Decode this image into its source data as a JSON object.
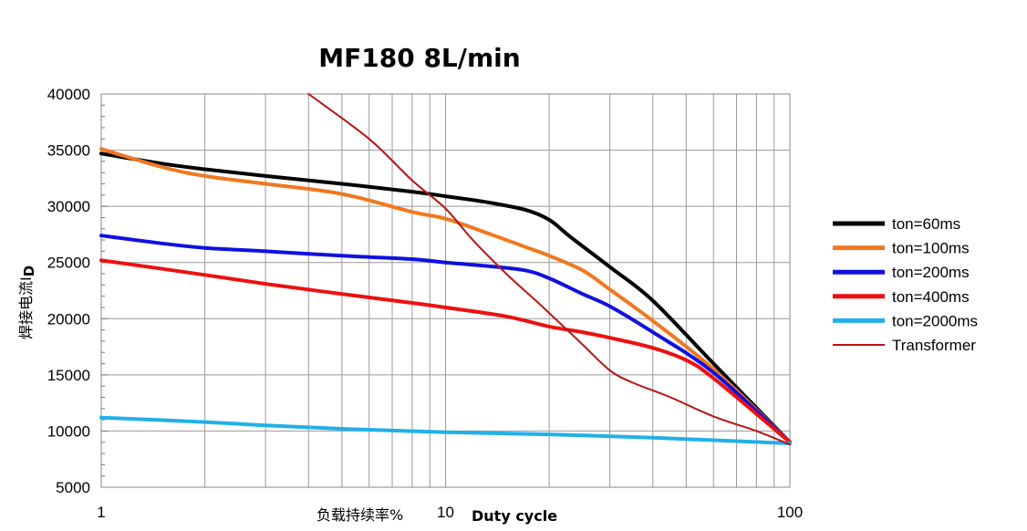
{
  "chart_data": {
    "type": "line",
    "title": "MF180 8L/min",
    "xscale": "log",
    "xlim": [
      1,
      100
    ],
    "ylim": [
      5000,
      40000
    ],
    "xticks": [
      "1",
      "10",
      "100"
    ],
    "yticks": [
      "5000",
      "10000",
      "15000",
      "20000",
      "25000",
      "30000",
      "35000",
      "40000"
    ],
    "xlabel_cn": "负载持续率%",
    "xlabel_en": "Duty cycle",
    "ylabel": "焊接电流I",
    "ylabel_sub": "D",
    "grid": true,
    "legend_position": "right",
    "series": [
      {
        "name": "ton=60ms",
        "color": "#000000",
        "points": [
          [
            1,
            34700
          ],
          [
            1.5,
            33800
          ],
          [
            2,
            33300
          ],
          [
            3,
            32700
          ],
          [
            5,
            32000
          ],
          [
            8,
            31300
          ],
          [
            10,
            30900
          ],
          [
            13,
            30400
          ],
          [
            17,
            29700
          ],
          [
            20,
            28800
          ],
          [
            23,
            27300
          ],
          [
            30,
            24600
          ],
          [
            40,
            21600
          ],
          [
            60,
            16000
          ],
          [
            100,
            9000
          ]
        ]
      },
      {
        "name": "ton=100ms",
        "color": "#f07820",
        "points": [
          [
            1,
            35100
          ],
          [
            1.5,
            33500
          ],
          [
            2,
            32700
          ],
          [
            3,
            32000
          ],
          [
            5,
            31100
          ],
          [
            8,
            29500
          ],
          [
            10,
            28900
          ],
          [
            13,
            27700
          ],
          [
            17,
            26400
          ],
          [
            20,
            25600
          ],
          [
            25,
            24300
          ],
          [
            30,
            22600
          ],
          [
            40,
            19800
          ],
          [
            60,
            15500
          ],
          [
            100,
            9000
          ]
        ]
      },
      {
        "name": "ton=200ms",
        "color": "#1010e0",
        "points": [
          [
            1,
            27400
          ],
          [
            1.5,
            26700
          ],
          [
            2,
            26300
          ],
          [
            3,
            26000
          ],
          [
            5,
            25600
          ],
          [
            8,
            25300
          ],
          [
            10,
            25000
          ],
          [
            13,
            24700
          ],
          [
            17,
            24300
          ],
          [
            20,
            23600
          ],
          [
            25,
            22200
          ],
          [
            30,
            21100
          ],
          [
            40,
            18800
          ],
          [
            60,
            15200
          ],
          [
            100,
            9000
          ]
        ]
      },
      {
        "name": "ton=400ms",
        "color": "#ee1010",
        "points": [
          [
            1,
            25200
          ],
          [
            2,
            23900
          ],
          [
            3,
            23100
          ],
          [
            5,
            22200
          ],
          [
            8,
            21400
          ],
          [
            10,
            21000
          ],
          [
            15,
            20200
          ],
          [
            20,
            19300
          ],
          [
            25,
            18800
          ],
          [
            30,
            18300
          ],
          [
            40,
            17400
          ],
          [
            50,
            16300
          ],
          [
            60,
            14700
          ],
          [
            100,
            9000
          ]
        ]
      },
      {
        "name": "ton=2000ms",
        "color": "#20b0e8",
        "points": [
          [
            1,
            11200
          ],
          [
            2,
            10800
          ],
          [
            3,
            10500
          ],
          [
            5,
            10200
          ],
          [
            10,
            9900
          ],
          [
            20,
            9700
          ],
          [
            40,
            9400
          ],
          [
            70,
            9100
          ],
          [
            100,
            8900
          ]
        ]
      },
      {
        "name": "Transformer",
        "color": "#b81414",
        "points": [
          [
            4,
            40000
          ],
          [
            6,
            36000
          ],
          [
            8,
            32300
          ],
          [
            10,
            29800
          ],
          [
            12,
            27000
          ],
          [
            15,
            24000
          ],
          [
            18,
            21800
          ],
          [
            20,
            20500
          ],
          [
            25,
            17700
          ],
          [
            30,
            15400
          ],
          [
            35,
            14300
          ],
          [
            45,
            13000
          ],
          [
            60,
            11300
          ],
          [
            80,
            10000
          ],
          [
            100,
            8800
          ]
        ]
      }
    ]
  }
}
